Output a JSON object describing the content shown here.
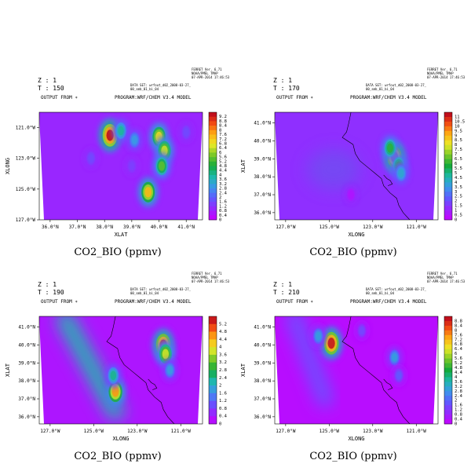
{
  "chart_data": [
    {
      "type": "heatmap",
      "z_label": "Z : 1",
      "t_label": "T : 150",
      "output_from": "OUTPUT FROM ∗",
      "program": "PROGRAM:WRF/CHEM V3.4 MODEL",
      "dataset": [
        "DATA SET: wrfout_d02_2008-03-27_",
        "00_smb_01_bi_04"
      ],
      "stamp": [
        "FERRET Ver. 6.71",
        "NOAA/PMEL TMAP",
        "07-APR-2014 17:46:53"
      ],
      "title": "CO2_BIO (ppmv)",
      "xlabel": "XLAT",
      "ylabel": "XLONG",
      "x_ticks": [
        "36.0°N",
        "37.0°N",
        "38.0°N",
        "39.0°N",
        "40.0°N",
        "41.0°N"
      ],
      "x_tick_values": [
        36,
        37,
        38,
        39,
        40,
        41
      ],
      "xlim": [
        35.6,
        41.6
      ],
      "y_ticks": [
        "121.0°W",
        "123.0°W",
        "125.0°W",
        "127.0°W"
      ],
      "y_tick_values": [
        121,
        123,
        125,
        127
      ],
      "ylim": [
        120.0,
        127.0
      ],
      "y_top_is_low": true,
      "colorbar_labels": [
        "9.2",
        "8.8",
        "8.4",
        "8",
        "7.6",
        "7.2",
        "6.8",
        "6.4",
        "6",
        "5.6",
        "5.2",
        "4.8",
        "4.4",
        "4",
        "3.6",
        "3.2",
        "2.8",
        "2.4",
        "2",
        "1.6",
        "1.2",
        "0.8",
        "0.4",
        "0"
      ],
      "colorbar_range": [
        0,
        9.6
      ],
      "coastline": false,
      "background": 0.9,
      "hotspots": [
        {
          "x": 38.2,
          "y": 121.5,
          "value": 9.5
        },
        {
          "x": 38.6,
          "y": 121.2,
          "value": 4.0
        },
        {
          "x": 39.1,
          "y": 121.8,
          "value": 3.0
        },
        {
          "x": 40.0,
          "y": 121.6,
          "value": 7.0
        },
        {
          "x": 40.2,
          "y": 122.5,
          "value": 6.5
        },
        {
          "x": 40.1,
          "y": 123.5,
          "value": 5.5
        },
        {
          "x": 39.6,
          "y": 125.2,
          "value": 7.5
        },
        {
          "x": 37.5,
          "y": 123.0,
          "value": 1.6
        },
        {
          "x": 39.0,
          "y": 123.5,
          "value": 1.4
        },
        {
          "x": 41.0,
          "y": 121.3,
          "value": 1.6
        }
      ]
    },
    {
      "type": "heatmap",
      "z_label": "Z : 1",
      "t_label": "T : 170",
      "output_from": "OUTPUT FROM ∗",
      "program": "PROGRAM:WRF/CHEM V3.4 MODEL",
      "dataset": [
        "DATA SET: wrfout_d02_2008-03-27_",
        "00_smb_01_bi_04"
      ],
      "stamp": [
        "FERRET Ver. 6.71",
        "NOAA/PMEL TMAP",
        "07-APR-2014 17:46:53"
      ],
      "title": "CO2_BIO (ppmv)",
      "xlabel": "XLONG",
      "ylabel": "XLAT",
      "x_ticks": [
        "127.0°W",
        "125.0°W",
        "123.0°W",
        "121.0°W"
      ],
      "x_tick_values": [
        127,
        125,
        123,
        121
      ],
      "xlim": [
        127.5,
        120.0
      ],
      "y_ticks": [
        "41.0°N",
        "40.0°N",
        "39.0°N",
        "38.0°N",
        "37.0°N",
        "36.0°N"
      ],
      "y_tick_values": [
        41,
        40,
        39,
        38,
        37,
        36
      ],
      "ylim": [
        35.6,
        41.6
      ],
      "colorbar_labels": [
        "11",
        "10.5",
        "10",
        "9.5",
        "9",
        "8.5",
        "8",
        "7.5",
        "7",
        "6.5",
        "6",
        "5.5",
        "5",
        "4.5",
        "4",
        "3.5",
        "3",
        "2.5",
        "2",
        "1.5",
        "1",
        "0.5",
        "0"
      ],
      "colorbar_range": [
        0,
        11.5
      ],
      "coastline": true,
      "background": 1.3,
      "hotspots": [
        {
          "x": 122.0,
          "y": 39.1,
          "value": 10.5
        },
        {
          "x": 122.2,
          "y": 39.6,
          "value": 6.0
        },
        {
          "x": 121.8,
          "y": 38.6,
          "value": 6.0
        },
        {
          "x": 121.7,
          "y": 38.2,
          "value": 4.0
        },
        {
          "x": 124.8,
          "y": 38.4,
          "value": -1.0
        },
        {
          "x": 124.0,
          "y": 37.0,
          "value": 0.6
        }
      ]
    },
    {
      "type": "heatmap",
      "z_label": "Z : 1",
      "t_label": "T : 190",
      "output_from": "OUTPUT FROM ∗",
      "program": "PROGRAM:WRF/CHEM V3.4 MODEL",
      "dataset": [
        "DATA SET: wrfout_d02_2008-03-27_",
        "00_smb_01_bi_04"
      ],
      "stamp": [
        "FERRET Ver. 6.71",
        "NOAA/PMEL TMAP",
        "07-APR-2014 17:46:53"
      ],
      "title": "CO2_BIO (ppmv)",
      "xlabel": "XLONG",
      "ylabel": "XLAT",
      "x_ticks": [
        "127.0°W",
        "125.0°W",
        "123.0°W",
        "121.0°W"
      ],
      "x_tick_values": [
        127,
        125,
        123,
        121
      ],
      "xlim": [
        127.5,
        120.0
      ],
      "y_ticks": [
        "41.0°N",
        "40.0°N",
        "39.0°N",
        "38.0°N",
        "37.0°N",
        "36.0°N"
      ],
      "y_tick_values": [
        41,
        40,
        39,
        38,
        37,
        36
      ],
      "ylim": [
        35.6,
        41.6
      ],
      "colorbar_labels": [
        "5.2",
        "4.8",
        "4.4",
        "4",
        "3.6",
        "3.2",
        "2.8",
        "2.4",
        "2",
        "1.6",
        "1.2",
        "0.8",
        "0.4",
        "0"
      ],
      "colorbar_range": [
        0,
        5.6
      ],
      "coastline": true,
      "background": 0.3,
      "plume": {
        "x1": 126.3,
        "y1": 41.4,
        "x2": 124.0,
        "y2": 36.3,
        "value": 2.2
      },
      "hotspots": [
        {
          "x": 124.0,
          "y": 37.4,
          "value": 4.6
        },
        {
          "x": 124.1,
          "y": 38.3,
          "value": 2.4
        },
        {
          "x": 121.8,
          "y": 40.0,
          "value": 5.4
        },
        {
          "x": 121.7,
          "y": 39.5,
          "value": 3.8
        },
        {
          "x": 121.5,
          "y": 38.6,
          "value": 1.8
        }
      ]
    },
    {
      "type": "heatmap",
      "z_label": "Z : 1",
      "t_label": "T : 210",
      "output_from": "OUTPUT FROM ∗",
      "program": "PROGRAM:WRF/CHEM V3.4 MODEL",
      "dataset": [
        "DATA SET: wrfout_d02_2008-03-27_",
        "00_smb_01_bi_04"
      ],
      "stamp": [
        "FERRET Ver. 6.71",
        "NOAA/PMEL TMAP",
        "07-APR-2014 17:46:53"
      ],
      "title": "CO2_BIO (ppmv)",
      "xlabel": "XLONG",
      "ylabel": "XLAT",
      "x_ticks": [
        "127.0°W",
        "125.0°W",
        "123.0°W",
        "121.0°W"
      ],
      "x_tick_values": [
        127,
        125,
        123,
        121
      ],
      "xlim": [
        127.5,
        120.0
      ],
      "y_ticks": [
        "41.0°N",
        "40.0°N",
        "39.0°N",
        "38.0°N",
        "37.0°N",
        "36.0°N"
      ],
      "y_tick_values": [
        41,
        40,
        39,
        38,
        37,
        36
      ],
      "ylim": [
        35.6,
        41.6
      ],
      "colorbar_labels": [
        "8.8",
        "8.4",
        "8",
        "7.6",
        "7.2",
        "6.8",
        "6.4",
        "6",
        "5.6",
        "5.2",
        "4.8",
        "4.4",
        "4",
        "3.6",
        "3.2",
        "2.8",
        "2.4",
        "2",
        "1.6",
        "1.2",
        "0.8",
        "0.4",
        "0"
      ],
      "colorbar_range": [
        0,
        9.2
      ],
      "coastline": true,
      "background": 0.3,
      "plume": {
        "x1": 126.6,
        "y1": 41.5,
        "x2": 125.2,
        "y2": 37.0,
        "value": 1.6
      },
      "hotspots": [
        {
          "x": 124.9,
          "y": 40.1,
          "value": 9.0
        },
        {
          "x": 125.5,
          "y": 40.5,
          "value": 3.0
        },
        {
          "x": 122.0,
          "y": 39.3,
          "value": 3.0
        },
        {
          "x": 121.8,
          "y": 38.3,
          "value": 1.8
        },
        {
          "x": 123.5,
          "y": 40.8,
          "value": 1.5
        }
      ]
    }
  ]
}
